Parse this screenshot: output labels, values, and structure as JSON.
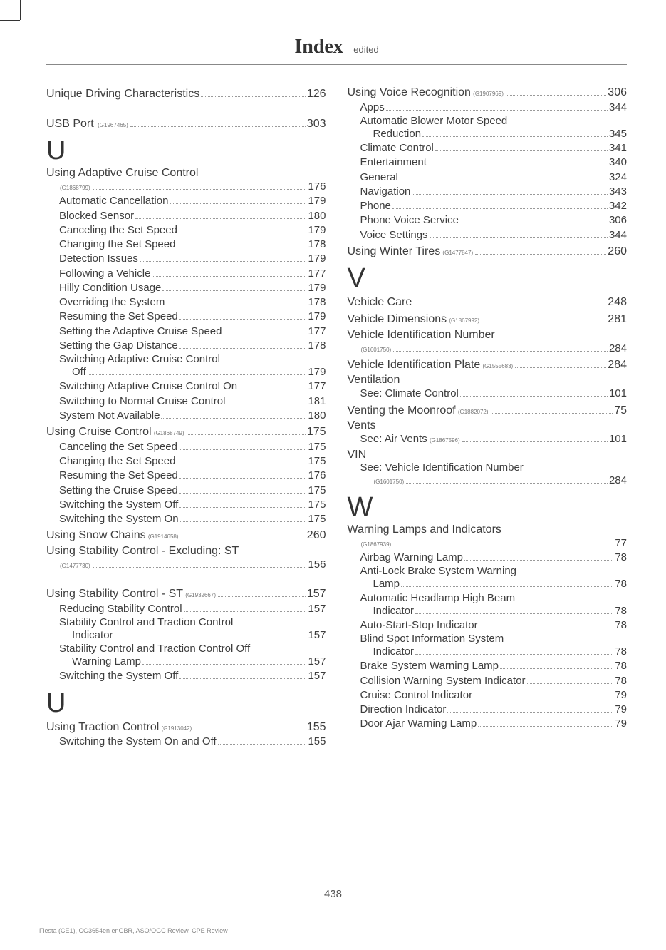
{
  "header": {
    "title": "Index",
    "sub": "edited"
  },
  "pagenum": "438",
  "footer": "Fiesta (CE1), CG3654en enGBR, ASO/OGC Review, CPE Review",
  "items": [
    {
      "t": "main",
      "label": "Unique Driving Characteristics",
      "page": "126"
    },
    {
      "t": "gap"
    },
    {
      "t": "main",
      "label": "USB Port ",
      "gid": " (G1967465)",
      "page": "303"
    },
    {
      "t": "letter",
      "label": "U"
    },
    {
      "t": "heading",
      "label": "Using Adaptive Cruise Control"
    },
    {
      "t": "sub",
      "label": "",
      "gid": "(G1868799)",
      "page": "176"
    },
    {
      "t": "sub",
      "label": "Automatic Cancellation",
      "page": "179"
    },
    {
      "t": "sub",
      "label": "Blocked Sensor",
      "page": "180"
    },
    {
      "t": "sub",
      "label": "Canceling the Set Speed",
      "page": "179"
    },
    {
      "t": "sub",
      "label": "Changing the Set Speed",
      "page": "178"
    },
    {
      "t": "sub",
      "label": "Detection Issues",
      "page": "179"
    },
    {
      "t": "sub",
      "label": "Following a Vehicle",
      "page": "177"
    },
    {
      "t": "sub",
      "label": "Hilly Condition Usage",
      "page": "179"
    },
    {
      "t": "sub",
      "label": "Overriding the System",
      "page": "178"
    },
    {
      "t": "sub",
      "label": "Resuming the Set Speed",
      "page": "179"
    },
    {
      "t": "sub",
      "label": "Setting the Adaptive Cruise Speed",
      "page": "177"
    },
    {
      "t": "sub",
      "label": "Setting the Gap Distance",
      "page": "178"
    },
    {
      "t": "sub-heading",
      "label": "Switching Adaptive Cruise Control"
    },
    {
      "t": "subsub",
      "label": "Off",
      "page": "179"
    },
    {
      "t": "sub",
      "label": "Switching Adaptive Cruise Control On",
      "page": "177"
    },
    {
      "t": "sub",
      "label": "Switching to Normal Cruise Control",
      "page": "181"
    },
    {
      "t": "sub",
      "label": "System Not Available",
      "page": "180"
    },
    {
      "t": "main",
      "label": "Using Cruise Control",
      "gid": " (G1868749)",
      "page": "175"
    },
    {
      "t": "sub",
      "label": "Canceling the Set Speed",
      "page": "175"
    },
    {
      "t": "sub",
      "label": "Changing the Set Speed",
      "page": "175"
    },
    {
      "t": "sub",
      "label": "Resuming the Set Speed",
      "page": "176"
    },
    {
      "t": "sub",
      "label": "Setting the Cruise Speed",
      "page": "175"
    },
    {
      "t": "sub",
      "label": "Switching the System Off",
      "page": "175"
    },
    {
      "t": "sub",
      "label": "Switching the System On",
      "page": "175"
    },
    {
      "t": "main",
      "label": "Using Snow Chains",
      "gid": " (G1914658)",
      "page": "260"
    },
    {
      "t": "heading",
      "label": "Using Stability Control - Excluding: ST"
    },
    {
      "t": "sub",
      "label": "",
      "gid": "(G1477730)",
      "page": "156"
    },
    {
      "t": "gap"
    },
    {
      "t": "main",
      "label": "Using Stability Control - ST",
      "gid": " (G1932667)",
      "page": "157"
    },
    {
      "t": "sub",
      "label": "Reducing Stability Control ",
      "page": "157"
    },
    {
      "t": "sub-heading",
      "label": "Stability Control and Traction Control"
    },
    {
      "t": "subsub",
      "label": "Indicator ",
      "page": "157"
    },
    {
      "t": "sub-heading",
      "label": "Stability Control and Traction Control Off"
    },
    {
      "t": "subsub",
      "label": "Warning Lamp ",
      "page": "157"
    },
    {
      "t": "sub",
      "label": "Switching the System Off ",
      "page": "157"
    },
    {
      "t": "letter",
      "label": "U"
    },
    {
      "t": "main",
      "label": "Using Traction Control",
      "gid": " (G1913042)",
      "page": "155"
    },
    {
      "t": "sub",
      "label": "Switching the System On and Off",
      "page": "155"
    },
    {
      "t": "break"
    },
    {
      "t": "main",
      "label": "Using Voice Recognition",
      "gid": " (G1907969)",
      "page": "306"
    },
    {
      "t": "sub",
      "label": "Apps",
      "page": "344"
    },
    {
      "t": "sub-heading",
      "label": "Automatic Blower Motor Speed"
    },
    {
      "t": "subsub",
      "label": "Reduction",
      "page": "345"
    },
    {
      "t": "sub",
      "label": "Climate Control",
      "page": "341"
    },
    {
      "t": "sub",
      "label": "Entertainment",
      "page": "340"
    },
    {
      "t": "sub",
      "label": "General",
      "page": "324"
    },
    {
      "t": "sub",
      "label": "Navigation",
      "page": "343"
    },
    {
      "t": "sub",
      "label": "Phone",
      "page": "342"
    },
    {
      "t": "sub",
      "label": "Phone Voice Service",
      "page": "306"
    },
    {
      "t": "sub",
      "label": "Voice Settings",
      "page": "344"
    },
    {
      "t": "main",
      "label": "Using Winter Tires",
      "gid": " (G1477847)",
      "page": "260"
    },
    {
      "t": "letter",
      "label": "V"
    },
    {
      "t": "main",
      "label": "Vehicle Care",
      "page": "248"
    },
    {
      "t": "main",
      "label": "Vehicle Dimensions",
      "gid": " (G1867992)",
      "page": "281"
    },
    {
      "t": "heading",
      "label": "Vehicle Identification Number"
    },
    {
      "t": "sub",
      "label": "",
      "gid": "(G1601750)",
      "page": "284"
    },
    {
      "t": "main",
      "label": "Vehicle Identification Plate",
      "gid": " (G1555683)",
      "page": "284"
    },
    {
      "t": "heading",
      "label": "Ventilation"
    },
    {
      "t": "sub",
      "label": "See: Climate Control",
      "page": "101"
    },
    {
      "t": "main",
      "label": "Venting the Moonroof",
      "gid": " (G1882072)",
      "page": "75"
    },
    {
      "t": "heading",
      "label": "Vents"
    },
    {
      "t": "sub",
      "label": "See: Air Vents",
      "gid": " (G1867596)",
      "page": "101"
    },
    {
      "t": "heading",
      "label": "VIN"
    },
    {
      "t": "sub-heading",
      "label": "See: Vehicle Identification Number"
    },
    {
      "t": "subsub",
      "label": "",
      "gid": "(G1601750)",
      "page": "284"
    },
    {
      "t": "letter",
      "label": "W"
    },
    {
      "t": "heading",
      "label": "Warning Lamps and Indicators"
    },
    {
      "t": "sub",
      "label": "",
      "gid": "(G1867939)",
      "page": "77"
    },
    {
      "t": "sub",
      "label": "Airbag Warning Lamp",
      "page": "78"
    },
    {
      "t": "sub-heading",
      "label": "Anti-Lock Brake System Warning"
    },
    {
      "t": "subsub",
      "label": "Lamp",
      "page": "78"
    },
    {
      "t": "sub-heading",
      "label": "Automatic Headlamp High Beam"
    },
    {
      "t": "subsub",
      "label": "Indicator",
      "page": "78"
    },
    {
      "t": "sub",
      "label": "Auto-Start-Stop Indicator",
      "page": "78"
    },
    {
      "t": "sub-heading",
      "label": "Blind Spot Information System"
    },
    {
      "t": "subsub",
      "label": "Indicator",
      "page": "78"
    },
    {
      "t": "sub",
      "label": "Brake System Warning Lamp",
      "page": "78"
    },
    {
      "t": "sub",
      "label": "Collision Warning System Indicator",
      "page": "78"
    },
    {
      "t": "sub",
      "label": "Cruise Control Indicator",
      "page": "79"
    },
    {
      "t": "sub",
      "label": "Direction Indicator",
      "page": "79"
    },
    {
      "t": "sub",
      "label": "Door Ajar Warning Lamp",
      "page": "79"
    }
  ]
}
